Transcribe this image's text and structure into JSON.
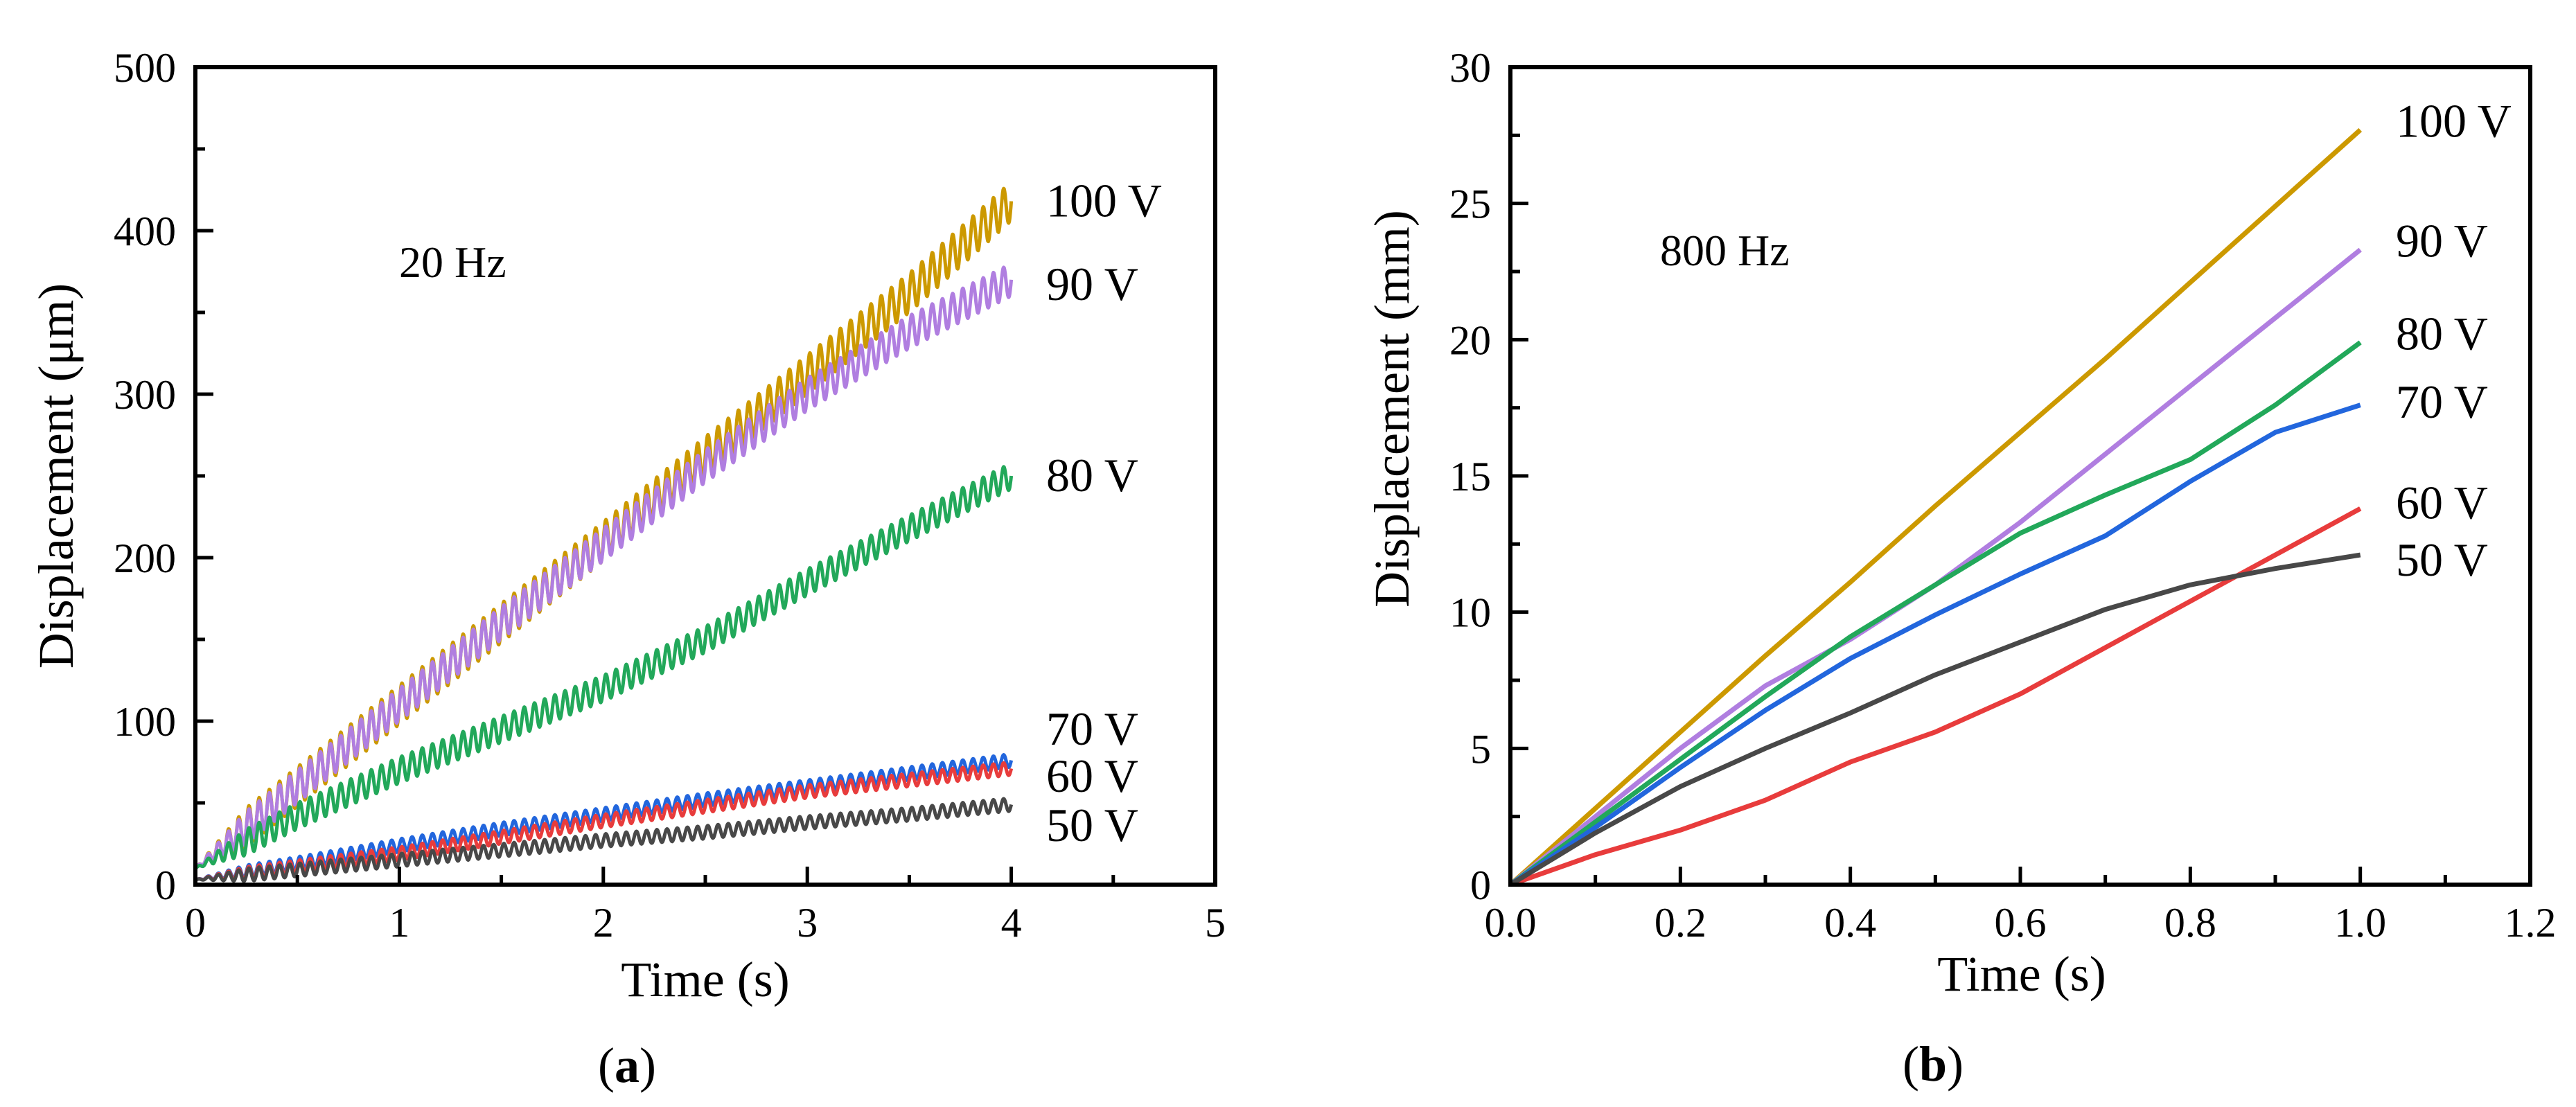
{
  "chart_data": [
    {
      "id": "a",
      "type": "line",
      "caption": "(a)",
      "caption_letter": "a",
      "annotation": "20 Hz",
      "xlabel": "Time (s)",
      "ylabel": "Displacement (μm)",
      "xlim": [
        0,
        5
      ],
      "ylim": [
        0,
        500
      ],
      "xticks": [
        0,
        1,
        2,
        3,
        4,
        5
      ],
      "yticks": [
        0,
        100,
        200,
        300,
        400,
        500
      ],
      "xtick_labels": [
        "0",
        "1",
        "2",
        "3",
        "4",
        "5"
      ],
      "ytick_labels": [
        "0",
        "100",
        "200",
        "300",
        "400",
        "500"
      ],
      "oscillation_hz": 20,
      "series": [
        {
          "name": "100 V",
          "color": "#cc9900",
          "x": [
            0,
            0.5,
            1,
            1.5,
            2,
            2.5,
            3,
            3.5,
            4
          ],
          "values": [
            10,
            60,
            110,
            160,
            210,
            262,
            312,
            362,
            418
          ],
          "amplitude": 12
        },
        {
          "name": "90 V",
          "color": "#b07ee0",
          "x": [
            0,
            0.5,
            1,
            1.5,
            2,
            2.5,
            3,
            3.5,
            4
          ],
          "values": [
            10,
            60,
            110,
            160,
            208,
            256,
            300,
            338,
            370
          ],
          "amplitude": 10
        },
        {
          "name": "80 V",
          "color": "#22a85a",
          "x": [
            0,
            0.5,
            1,
            1.5,
            2,
            2.5,
            3,
            3.5,
            4
          ],
          "values": [
            10,
            42,
            70,
            95,
            120,
            150,
            185,
            218,
            250
          ],
          "amplitude": 8
        },
        {
          "name": "70 V",
          "color": "#2266dd",
          "x": [
            0,
            0.5,
            1,
            1.5,
            2,
            2.5,
            3,
            3.5,
            4
          ],
          "values": [
            3,
            13,
            24,
            34,
            43,
            52,
            60,
            68,
            76
          ],
          "amplitude": 4
        },
        {
          "name": "60 V",
          "color": "#e83c3c",
          "x": [
            0,
            0.5,
            1,
            1.5,
            2,
            2.5,
            3,
            3.5,
            4
          ],
          "values": [
            3,
            11,
            19,
            29,
            39,
            48,
            57,
            64,
            71
          ],
          "amplitude": 4
        },
        {
          "name": "50 V",
          "color": "#484848",
          "x": [
            0,
            0.5,
            1,
            1.5,
            2,
            2.5,
            3,
            3.5,
            4
          ],
          "values": [
            3,
            9,
            15,
            21,
            27,
            32,
            38,
            43,
            49
          ],
          "amplitude": 4
        }
      ],
      "label_values": [
        418,
        367,
        250,
        95,
        66,
        36
      ]
    },
    {
      "id": "b",
      "type": "line",
      "caption": "(b)",
      "caption_letter": "b",
      "annotation": "800 Hz",
      "xlabel": "Time (s)",
      "ylabel": "Displacement (mm)",
      "xlim": [
        0,
        1.2
      ],
      "ylim": [
        0,
        30
      ],
      "xticks": [
        0,
        0.2,
        0.4,
        0.6,
        0.8,
        1.0,
        1.2
      ],
      "yticks": [
        0,
        5,
        10,
        15,
        20,
        25,
        30
      ],
      "xtick_labels": [
        "0.0",
        "0.2",
        "0.4",
        "0.6",
        "0.8",
        "1.0",
        "1.2"
      ],
      "ytick_labels": [
        "0",
        "5",
        "10",
        "15",
        "20",
        "25",
        "30"
      ],
      "series": [
        {
          "name": "100 V",
          "color": "#cc9900",
          "x": [
            0,
            0.1,
            0.2,
            0.3,
            0.4,
            0.5,
            0.6,
            0.7,
            0.8,
            0.9,
            1.0
          ],
          "values": [
            0,
            2.8,
            5.6,
            8.4,
            11.1,
            13.9,
            16.6,
            19.3,
            22.1,
            24.9,
            27.7
          ]
        },
        {
          "name": "90 V",
          "color": "#b07ee0",
          "x": [
            0,
            0.1,
            0.2,
            0.3,
            0.4,
            0.5,
            0.6,
            0.7,
            0.8,
            0.9,
            1.0
          ],
          "values": [
            0,
            2.5,
            5.0,
            7.3,
            9.0,
            11.0,
            13.3,
            15.8,
            18.3,
            20.8,
            23.3
          ]
        },
        {
          "name": "80 V",
          "color": "#22a85a",
          "x": [
            0,
            0.1,
            0.2,
            0.3,
            0.4,
            0.5,
            0.6,
            0.7,
            0.8,
            0.9,
            1.0
          ],
          "values": [
            0,
            2.3,
            4.6,
            6.9,
            9.1,
            11.0,
            12.9,
            14.3,
            15.6,
            17.6,
            19.9
          ]
        },
        {
          "name": "70 V",
          "color": "#2266dd",
          "x": [
            0,
            0.1,
            0.2,
            0.3,
            0.4,
            0.5,
            0.6,
            0.7,
            0.8,
            0.9,
            1.0
          ],
          "values": [
            0,
            2.1,
            4.3,
            6.4,
            8.3,
            9.9,
            11.4,
            12.8,
            14.8,
            16.6,
            17.6
          ]
        },
        {
          "name": "60 V",
          "color": "#e83c3c",
          "x": [
            0,
            0.1,
            0.2,
            0.3,
            0.4,
            0.5,
            0.6,
            0.7,
            0.8,
            0.9,
            1.0
          ],
          "values": [
            0,
            1.1,
            2.0,
            3.1,
            4.5,
            5.6,
            7.0,
            8.7,
            10.4,
            12.1,
            13.8
          ]
        },
        {
          "name": "50 V",
          "color": "#484848",
          "x": [
            0,
            0.1,
            0.2,
            0.3,
            0.4,
            0.5,
            0.6,
            0.7,
            0.8,
            0.9,
            1.0
          ],
          "values": [
            0,
            1.9,
            3.6,
            5.0,
            6.3,
            7.7,
            8.9,
            10.1,
            11.0,
            11.6,
            12.1
          ]
        }
      ],
      "label_values": [
        28.0,
        23.6,
        20.2,
        17.7,
        14.0,
        11.9
      ]
    }
  ]
}
